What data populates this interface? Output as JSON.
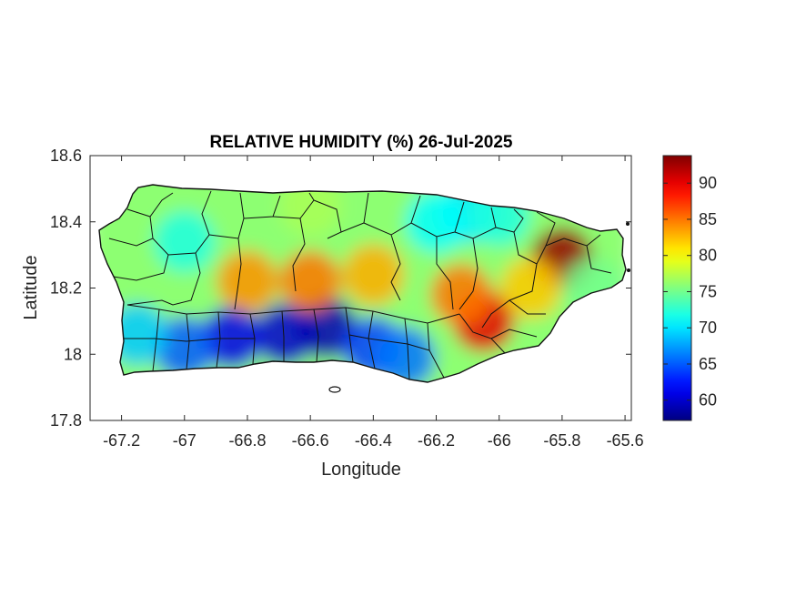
{
  "chart_data": {
    "type": "heatmap",
    "title": "RELATIVE HUMIDITY (%) 26-Jul-2025",
    "xlabel": "Longitude",
    "ylabel": "Latitude",
    "xlim": [
      -67.3,
      -65.58
    ],
    "ylim": [
      17.8,
      18.6
    ],
    "x_ticks": [
      -67.2,
      -67,
      -66.8,
      -66.6,
      -66.4,
      -66.2,
      -66,
      -65.8,
      -65.6
    ],
    "x_tick_labels": [
      "-67.2",
      "-67",
      "-66.8",
      "-66.6",
      "-66.4",
      "-66.2",
      "-66",
      "-65.8",
      "-65.6"
    ],
    "y_ticks": [
      17.8,
      18,
      18.2,
      18.4,
      18.6
    ],
    "y_tick_labels": [
      "17.8",
      "18",
      "18.2",
      "18.4",
      "18.6"
    ],
    "colorbar": {
      "colormap": "jet",
      "range": [
        57.2,
        93.8
      ],
      "ticks": [
        60,
        65,
        70,
        75,
        80,
        85,
        90
      ],
      "tick_labels": [
        "60",
        "65",
        "70",
        "75",
        "80",
        "85",
        "90"
      ]
    },
    "humidity_features": [
      {
        "lon": -66.68,
        "lat": 18.06,
        "value": 60
      },
      {
        "lon": -66.55,
        "lat": 18.08,
        "value": 59
      },
      {
        "lon": -66.85,
        "lat": 18.05,
        "value": 61
      },
      {
        "lon": -67.0,
        "lat": 18.02,
        "value": 65
      },
      {
        "lon": -66.4,
        "lat": 18.02,
        "value": 64
      },
      {
        "lon": -66.3,
        "lat": 17.99,
        "value": 66
      },
      {
        "lon": -67.15,
        "lat": 18.06,
        "value": 69
      },
      {
        "lon": -66.8,
        "lat": 18.22,
        "value": 84
      },
      {
        "lon": -66.6,
        "lat": 18.22,
        "value": 85
      },
      {
        "lon": -66.4,
        "lat": 18.24,
        "value": 83
      },
      {
        "lon": -66.05,
        "lat": 18.1,
        "value": 90
      },
      {
        "lon": -66.12,
        "lat": 18.18,
        "value": 85
      },
      {
        "lon": -65.8,
        "lat": 18.29,
        "value": 93
      },
      {
        "lon": -65.9,
        "lat": 18.2,
        "value": 82
      },
      {
        "lon": -66.1,
        "lat": 18.43,
        "value": 70
      },
      {
        "lon": -66.2,
        "lat": 18.4,
        "value": 71
      },
      {
        "lon": -66.0,
        "lat": 18.42,
        "value": 72
      },
      {
        "lon": -67.0,
        "lat": 18.34,
        "value": 72
      },
      {
        "lon": -66.6,
        "lat": 18.45,
        "value": 77
      },
      {
        "lon": -65.7,
        "lat": 18.2,
        "value": 75
      }
    ]
  }
}
